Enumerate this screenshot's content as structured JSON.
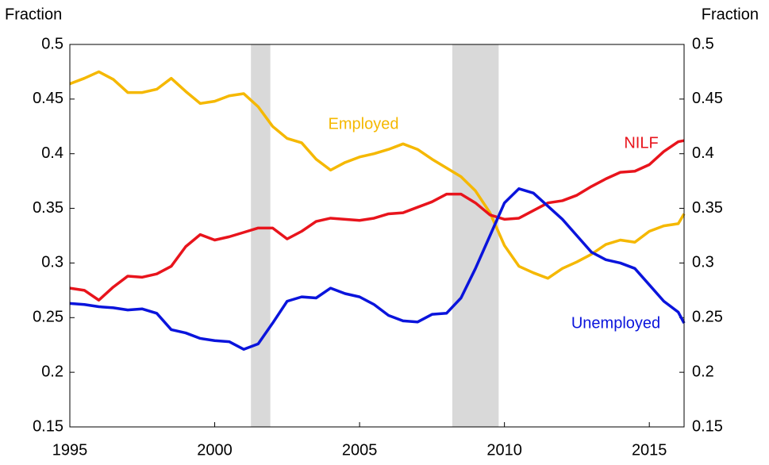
{
  "chart_data": {
    "type": "line",
    "y_axis_label": "Fraction",
    "y2_axis_label": "Fraction",
    "x": [
      1995,
      1995.5,
      1996,
      1996.5,
      1997,
      1997.5,
      1998,
      1998.5,
      1999,
      1999.5,
      2000,
      2000.5,
      2001,
      2001.5,
      2002,
      2002.5,
      2003,
      2003.5,
      2004,
      2004.5,
      2005,
      2005.5,
      2006,
      2006.5,
      2007,
      2007.5,
      2008,
      2008.5,
      2009,
      2009.5,
      2010,
      2010.5,
      2011,
      2011.5,
      2012,
      2012.5,
      2013,
      2013.5,
      2014,
      2014.5,
      2015,
      2015.5,
      2016,
      2016.2
    ],
    "series": [
      {
        "name": "Employed",
        "color": "#f5b800",
        "values": [
          0.464,
          0.469,
          0.475,
          0.468,
          0.456,
          0.456,
          0.459,
          0.469,
          0.457,
          0.446,
          0.448,
          0.453,
          0.455,
          0.443,
          0.425,
          0.414,
          0.41,
          0.395,
          0.385,
          0.392,
          0.397,
          0.4,
          0.404,
          0.409,
          0.404,
          0.395,
          0.387,
          0.379,
          0.366,
          0.346,
          0.316,
          0.297,
          0.291,
          0.286,
          0.295,
          0.301,
          0.308,
          0.317,
          0.321,
          0.319,
          0.329,
          0.334,
          0.336,
          0.345
        ]
      },
      {
        "name": "NILF",
        "color": "#e8141c",
        "values": [
          0.277,
          0.275,
          0.266,
          0.278,
          0.288,
          0.287,
          0.29,
          0.297,
          0.315,
          0.326,
          0.321,
          0.324,
          0.328,
          0.332,
          0.332,
          0.322,
          0.329,
          0.338,
          0.341,
          0.34,
          0.339,
          0.341,
          0.345,
          0.346,
          0.351,
          0.356,
          0.363,
          0.363,
          0.355,
          0.344,
          0.34,
          0.341,
          0.348,
          0.355,
          0.357,
          0.362,
          0.37,
          0.377,
          0.383,
          0.384,
          0.39,
          0.402,
          0.411,
          0.412
        ]
      },
      {
        "name": "Unemployed",
        "color": "#0a14dc",
        "values": [
          0.263,
          0.262,
          0.26,
          0.259,
          0.257,
          0.258,
          0.254,
          0.239,
          0.236,
          0.231,
          0.229,
          0.228,
          0.221,
          0.226,
          0.245,
          0.265,
          0.269,
          0.268,
          0.277,
          0.272,
          0.269,
          0.262,
          0.252,
          0.247,
          0.246,
          0.253,
          0.254,
          0.268,
          0.295,
          0.325,
          0.355,
          0.368,
          0.364,
          0.352,
          0.34,
          0.325,
          0.31,
          0.303,
          0.3,
          0.295,
          0.28,
          0.265,
          0.255,
          0.245
        ]
      }
    ],
    "shaded_periods": [
      [
        2001.25,
        2001.92
      ],
      [
        2008.2,
        2009.8
      ]
    ],
    "shade_color": "#d9d9d9",
    "xlim": [
      1995,
      2016.2
    ],
    "xticks": [
      1995,
      2000,
      2005,
      2010,
      2015
    ],
    "ylim": [
      0.15,
      0.5
    ],
    "yticks": [
      0.15,
      0.2,
      0.25,
      0.3,
      0.35,
      0.4,
      0.45,
      0.5
    ],
    "y2lim": [
      0.15,
      0.5
    ],
    "y2ticks": [
      0.15,
      0.2,
      0.25,
      0.3,
      0.35,
      0.4,
      0.45,
      0.5
    ],
    "grid": false
  }
}
